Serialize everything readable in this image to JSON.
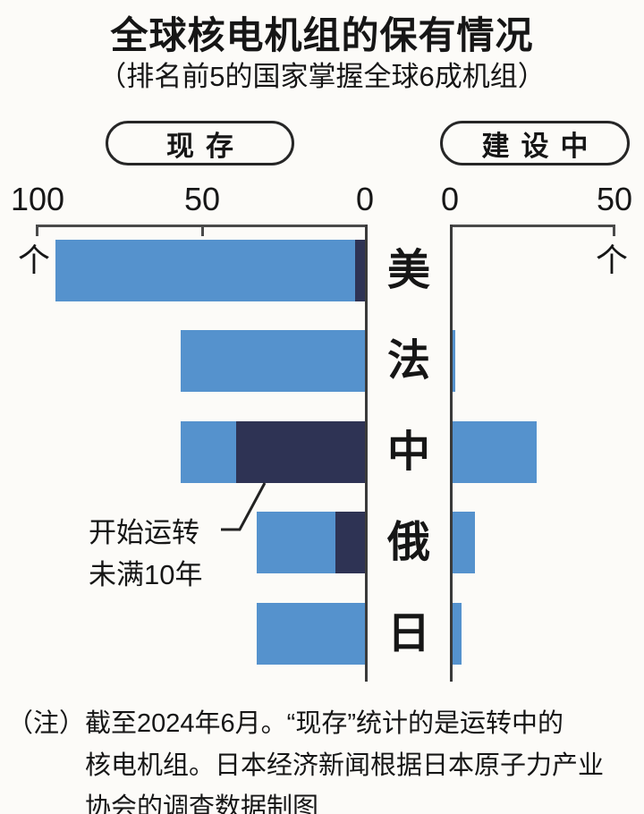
{
  "title": "全球核电机组的保有情况",
  "subtitle": "（排名前5的国家掌握全球6成机组）",
  "legend": {
    "existing": "现存",
    "under_construction": "建设中"
  },
  "axes": {
    "unit": "个",
    "left_ticks": [
      "100",
      "50",
      "0"
    ],
    "right_ticks": [
      "0",
      "50"
    ]
  },
  "annotation": {
    "line1": "开始运转",
    "line2": "未满10年"
  },
  "note": {
    "prefix": "（注）",
    "lines": [
      "截至2024年6月。“现存”统计的是运转中的",
      "核电机组。日本经济新闻根据日本原子力产业",
      "协会的调查数据制图"
    ]
  },
  "colors": {
    "bar_blue": "#5592cd",
    "bar_navy": "#2e3354",
    "axis": "#4a4a4a"
  },
  "chart_data": {
    "type": "bar",
    "orientation": "horizontal",
    "categories": [
      "美",
      "法",
      "中",
      "俄",
      "日"
    ],
    "unit": "个",
    "panels": [
      {
        "title": "现存",
        "axis_direction": "reversed",
        "xlim": [
          0,
          100
        ],
        "ticks": [
          100,
          50,
          0
        ],
        "series": [
          {
            "name": "现存合计（运转中）",
            "values": [
              94,
              56,
              56,
              33,
              33
            ]
          },
          {
            "name": "开始运转未满10年",
            "values": [
              3,
              0,
              39,
              9,
              0
            ]
          }
        ]
      },
      {
        "title": "建设中",
        "axis_direction": "normal",
        "xlim": [
          0,
          50
        ],
        "ticks": [
          0,
          50
        ],
        "series": [
          {
            "name": "建设中",
            "values": [
              0,
              1,
              26,
              7,
              3
            ]
          }
        ]
      }
    ]
  }
}
